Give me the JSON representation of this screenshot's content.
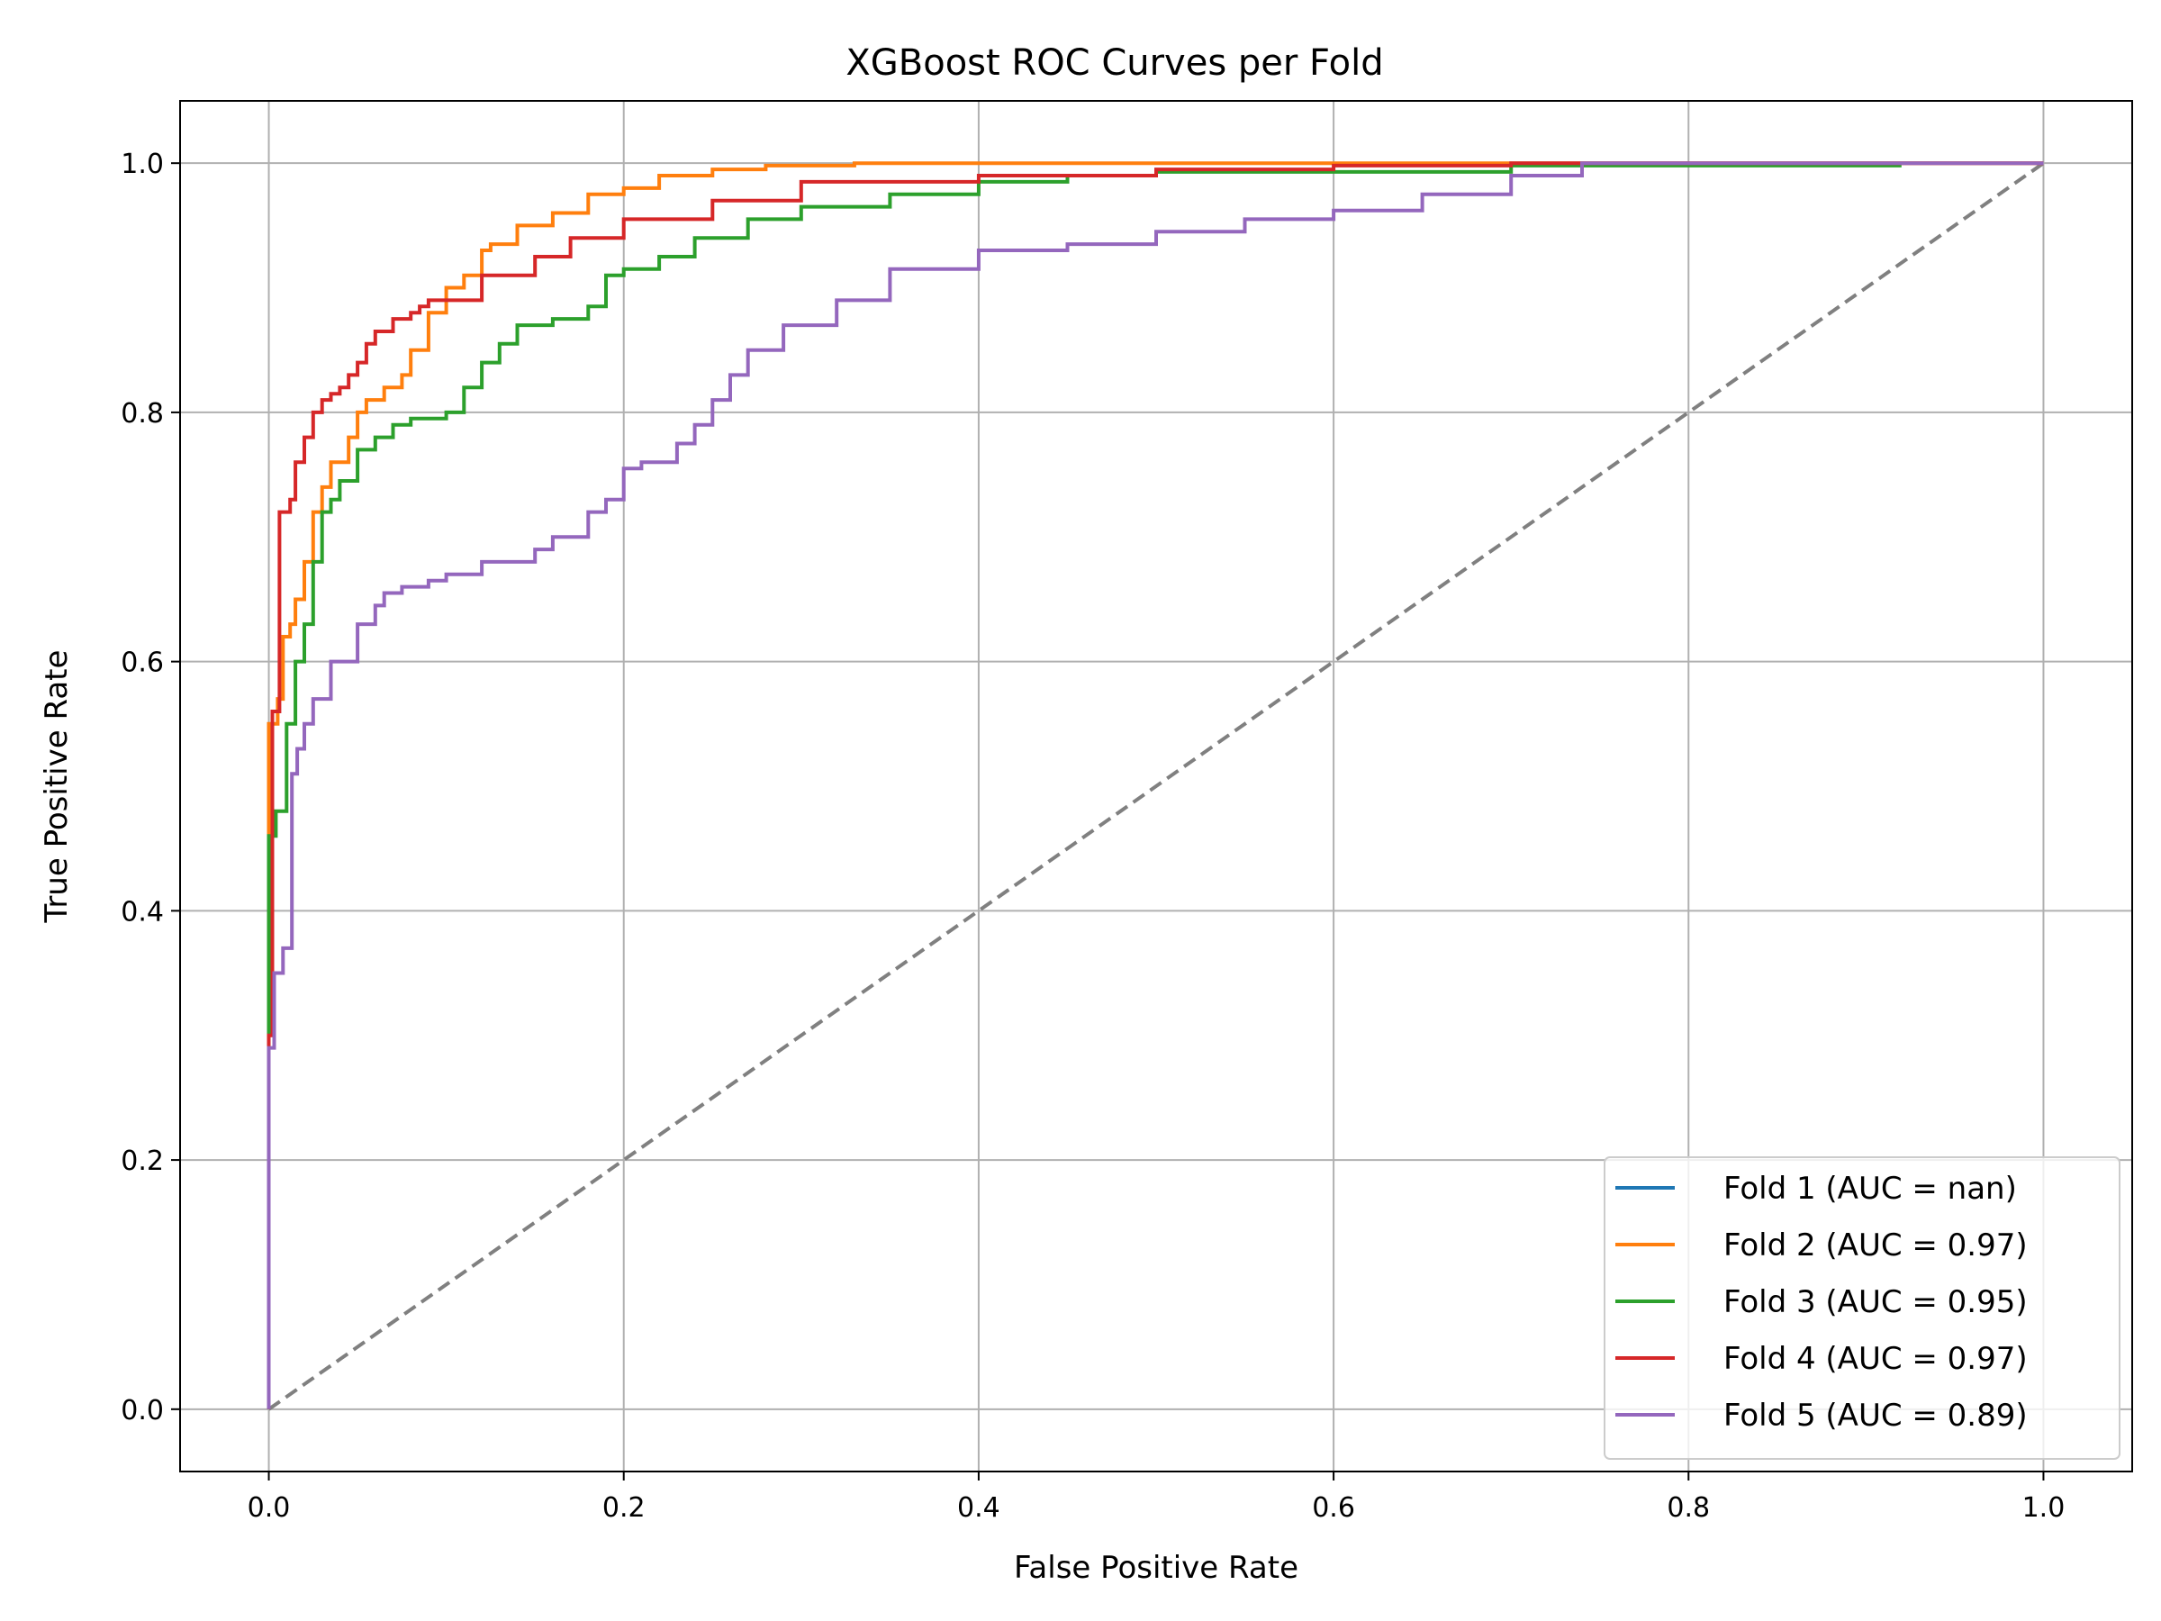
{
  "chart_data": {
    "type": "line",
    "title": "XGBoost ROC Curves per Fold",
    "xlabel": "False Positive Rate",
    "ylabel": "True Positive Rate",
    "xlim": [
      -0.05,
      1.05
    ],
    "ylim": [
      -0.05,
      1.05
    ],
    "xticks": [
      0.0,
      0.2,
      0.4,
      0.6,
      0.8,
      1.0
    ],
    "yticks": [
      0.0,
      0.2,
      0.4,
      0.6,
      0.8,
      1.0
    ],
    "xtick_labels": [
      "0.0",
      "0.2",
      "0.4",
      "0.6",
      "0.8",
      "1.0"
    ],
    "ytick_labels": [
      "0.0",
      "0.2",
      "0.4",
      "0.6",
      "0.8",
      "1.0"
    ],
    "grid": true,
    "legend_position": "lower-right",
    "series": [
      {
        "name": "Fold 1 (AUC = nan)",
        "color": "#1f77b4",
        "x": [],
        "y": []
      },
      {
        "name": "Fold 2 (AUC = 0.97)",
        "color": "#ff7f0e",
        "x": [
          0.0,
          0.0,
          0.005,
          0.008,
          0.012,
          0.015,
          0.02,
          0.025,
          0.03,
          0.035,
          0.045,
          0.05,
          0.055,
          0.065,
          0.075,
          0.08,
          0.09,
          0.1,
          0.11,
          0.12,
          0.125,
          0.14,
          0.16,
          0.18,
          0.2,
          0.22,
          0.25,
          0.28,
          0.33,
          0.4,
          0.5,
          0.6,
          1.0
        ],
        "y": [
          0.0,
          0.55,
          0.57,
          0.62,
          0.63,
          0.65,
          0.68,
          0.72,
          0.74,
          0.76,
          0.78,
          0.8,
          0.81,
          0.82,
          0.83,
          0.85,
          0.88,
          0.9,
          0.91,
          0.93,
          0.935,
          0.95,
          0.96,
          0.975,
          0.98,
          0.99,
          0.995,
          0.998,
          1.0,
          1.0,
          1.0,
          1.0,
          1.0
        ]
      },
      {
        "name": "Fold 3 (AUC = 0.95)",
        "color": "#2ca02c",
        "x": [
          0.0,
          0.0,
          0.004,
          0.01,
          0.015,
          0.02,
          0.025,
          0.03,
          0.035,
          0.04,
          0.05,
          0.06,
          0.07,
          0.08,
          0.1,
          0.11,
          0.12,
          0.13,
          0.14,
          0.16,
          0.18,
          0.19,
          0.2,
          0.22,
          0.24,
          0.27,
          0.3,
          0.35,
          0.4,
          0.45,
          0.5,
          0.6,
          0.7,
          0.92
        ],
        "y": [
          0.0,
          0.46,
          0.48,
          0.55,
          0.6,
          0.63,
          0.68,
          0.72,
          0.73,
          0.745,
          0.77,
          0.78,
          0.79,
          0.795,
          0.8,
          0.82,
          0.84,
          0.855,
          0.87,
          0.875,
          0.885,
          0.91,
          0.915,
          0.925,
          0.94,
          0.955,
          0.965,
          0.975,
          0.985,
          0.99,
          0.993,
          0.993,
          0.998,
          0.998
        ]
      },
      {
        "name": "Fold 4 (AUC = 0.97)",
        "color": "#d62728",
        "x": [
          0.0,
          0.0,
          0.002,
          0.006,
          0.012,
          0.015,
          0.02,
          0.025,
          0.03,
          0.035,
          0.04,
          0.045,
          0.05,
          0.055,
          0.06,
          0.07,
          0.08,
          0.085,
          0.09,
          0.1,
          0.12,
          0.15,
          0.17,
          0.2,
          0.25,
          0.3,
          0.4,
          0.5,
          0.6,
          0.7,
          1.0
        ],
        "y": [
          0.0,
          0.3,
          0.56,
          0.72,
          0.73,
          0.76,
          0.78,
          0.8,
          0.81,
          0.815,
          0.82,
          0.83,
          0.84,
          0.855,
          0.865,
          0.875,
          0.88,
          0.885,
          0.89,
          0.89,
          0.91,
          0.925,
          0.94,
          0.955,
          0.97,
          0.985,
          0.99,
          0.995,
          0.998,
          1.0,
          1.0
        ]
      },
      {
        "name": "Fold 5 (AUC = 0.89)",
        "color": "#9467bd",
        "x": [
          0.0,
          0.0,
          0.003,
          0.008,
          0.013,
          0.016,
          0.02,
          0.025,
          0.035,
          0.05,
          0.06,
          0.065,
          0.075,
          0.09,
          0.1,
          0.12,
          0.15,
          0.16,
          0.18,
          0.19,
          0.2,
          0.21,
          0.23,
          0.24,
          0.25,
          0.26,
          0.27,
          0.29,
          0.32,
          0.35,
          0.4,
          0.45,
          0.5,
          0.55,
          0.6,
          0.65,
          0.7,
          0.74,
          0.8,
          0.9,
          1.0
        ],
        "y": [
          0.0,
          0.29,
          0.35,
          0.37,
          0.51,
          0.53,
          0.55,
          0.57,
          0.6,
          0.63,
          0.645,
          0.655,
          0.66,
          0.665,
          0.67,
          0.68,
          0.69,
          0.7,
          0.72,
          0.73,
          0.755,
          0.76,
          0.775,
          0.79,
          0.81,
          0.83,
          0.85,
          0.87,
          0.89,
          0.915,
          0.93,
          0.935,
          0.945,
          0.955,
          0.962,
          0.975,
          0.99,
          1.0,
          1.0,
          1.0,
          1.0
        ]
      }
    ],
    "reference_line": {
      "x": [
        0.0,
        1.0
      ],
      "y": [
        0.0,
        1.0
      ],
      "color": "#808080",
      "style": "dashed"
    }
  }
}
